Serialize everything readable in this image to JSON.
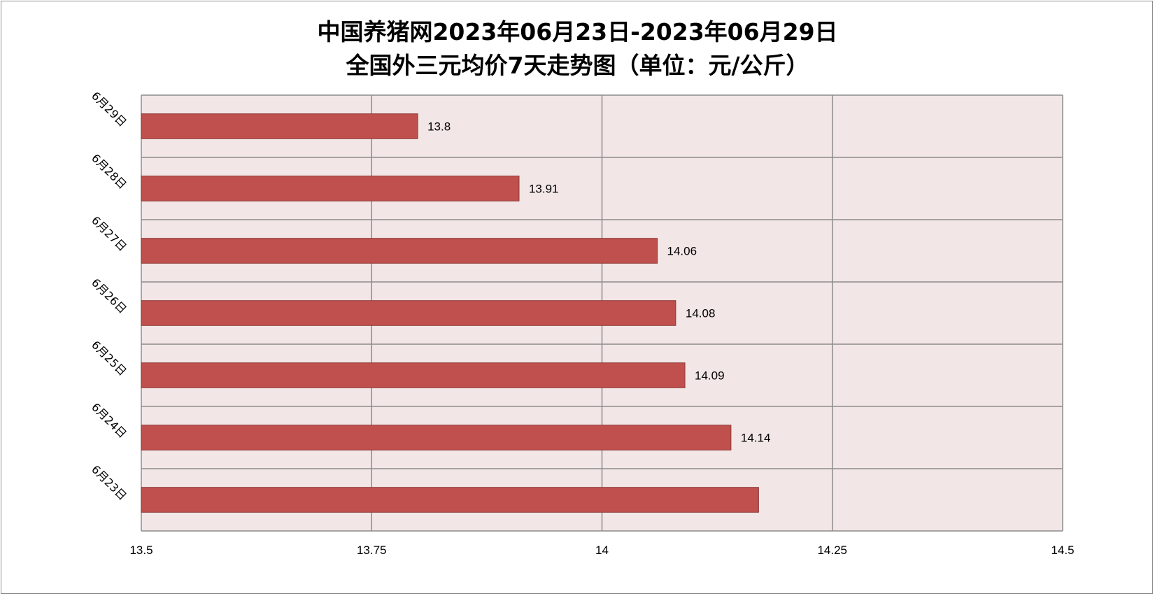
{
  "chart_data": {
    "type": "bar",
    "orientation": "horizontal",
    "title_line1": "中国养猪网2023年06月23日-2023年06月29日",
    "title_line2": "全国外三元均价7天走势图（单位：元/公斤）",
    "categories": [
      "6月29日",
      "6月28日",
      "6月27日",
      "6月26日",
      "6月25日",
      "6月24日",
      "6月23日"
    ],
    "values": [
      13.8,
      13.91,
      14.06,
      14.08,
      14.09,
      14.14,
      14.17
    ],
    "data_labels": [
      "13.8",
      "13.91",
      "14.06",
      "14.08",
      "14.09",
      "14.14",
      ""
    ],
    "xlim": [
      13.5,
      14.5
    ],
    "xticks": [
      13.5,
      13.75,
      14,
      14.25,
      14.5
    ],
    "xtick_labels": [
      "13.5",
      "13.75",
      "14",
      "14.25",
      "14.5"
    ],
    "xlabel": "",
    "ylabel": "",
    "grid": true,
    "legend": "none",
    "colors": {
      "bar_fill": "#c0504d",
      "bar_stroke": "#8c3836",
      "plot_bg": "#f2e6e6",
      "grid": "#8c8c8c"
    }
  }
}
